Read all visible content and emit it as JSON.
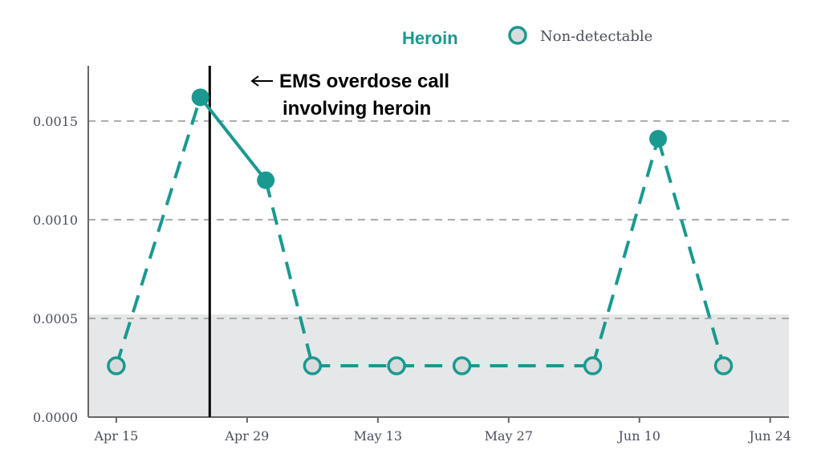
{
  "chart_data": {
    "type": "line",
    "title": "",
    "xlabel": "",
    "ylabel": "",
    "series_label": "Heroin",
    "legend": {
      "marker_label": "Non-detectable",
      "position": "top-right"
    },
    "colors": {
      "series": "#1a9990",
      "hollow_fill": "#d9dcdc",
      "band": "#e6e7e8",
      "grid": "#a9a9a9",
      "axis": "#666666",
      "event_line": "#000000"
    },
    "x_tick_labels": [
      "Apr 15",
      "Apr 29",
      "May 13",
      "May 27",
      "Jun 10",
      "Jun 24"
    ],
    "y_tick_labels": [
      "0.0000",
      "0.0005",
      "0.0010",
      "0.0015"
    ],
    "y_ticks": [
      0,
      0.0005,
      0.001,
      0.0015
    ],
    "xlim": [
      "2024-04-12",
      "2024-06-26"
    ],
    "ylim": [
      0,
      0.00178
    ],
    "x_ticks": [
      "2024-04-15",
      "2024-04-29",
      "2024-05-13",
      "2024-05-27",
      "2024-06-10",
      "2024-06-24"
    ],
    "grid": {
      "horizontal": true,
      "style": "dashed"
    },
    "nondetect_band_upper": 0.00052,
    "points": [
      {
        "x": "2024-04-15",
        "y": 0.00026,
        "detected": false
      },
      {
        "x": "2024-04-24",
        "y": 0.00162,
        "detected": true
      },
      {
        "x": "2024-05-01",
        "y": 0.0012,
        "detected": true
      },
      {
        "x": "2024-05-06",
        "y": 0.00026,
        "detected": false
      },
      {
        "x": "2024-05-15",
        "y": 0.00026,
        "detected": false
      },
      {
        "x": "2024-05-22",
        "y": 0.00026,
        "detected": false
      },
      {
        "x": "2024-06-05",
        "y": 0.00026,
        "detected": false
      },
      {
        "x": "2024-06-12",
        "y": 0.00141,
        "detected": true
      },
      {
        "x": "2024-06-19",
        "y": 0.00026,
        "detected": false
      }
    ],
    "event": {
      "x": "2024-04-25",
      "label_lines": [
        "EMS overdose call",
        "involving heroin"
      ]
    }
  }
}
